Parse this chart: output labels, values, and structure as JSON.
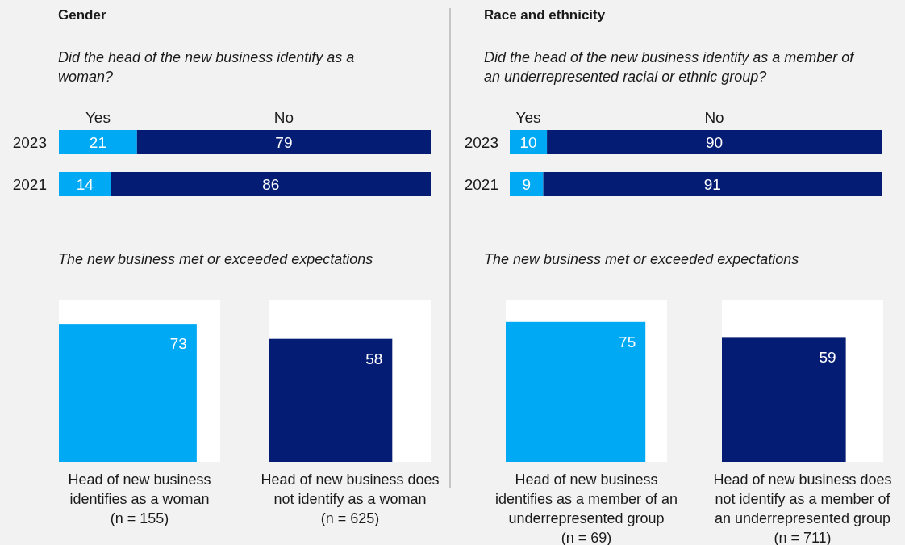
{
  "chart_data": [
    {
      "type": "bar",
      "orientation": "horizontal",
      "stacked": true,
      "title": "Gender",
      "subtitle": "Did the head of the new  business identify as a woman?",
      "categories": [
        "2023",
        "2021"
      ],
      "xlim": [
        0,
        100
      ],
      "tick_labels": "y",
      "data_labels": true,
      "series": [
        {
          "name": "Yes",
          "color": "#00a9f4",
          "values": [
            21,
            14
          ]
        },
        {
          "name": "No",
          "color": "#051c75",
          "values": [
            79,
            86
          ]
        }
      ]
    },
    {
      "type": "other",
      "title": "The new business met or exceeded expectations",
      "categories": [
        "Head of new business\nidentifies as a woman\n(n = 155)",
        "Head of new business does\nnot identify as a woman\n(n = 625)"
      ],
      "values": [
        73,
        58
      ],
      "colors": [
        "#00a9f4",
        "#051c75"
      ],
      "data_labels": true
    },
    {
      "type": "bar",
      "orientation": "horizontal",
      "stacked": true,
      "title": "Race and ethnicity",
      "subtitle": "Did the head of the new business identify as a member of an underrepresented racial or ethnic group?",
      "categories": [
        "2023",
        "2021"
      ],
      "xlim": [
        0,
        100
      ],
      "tick_labels": "y",
      "data_labels": true,
      "series": [
        {
          "name": "Yes",
          "color": "#00a9f4",
          "values": [
            10,
            9
          ]
        },
        {
          "name": "No",
          "color": "#051c75",
          "values": [
            90,
            91
          ]
        }
      ]
    },
    {
      "type": "other",
      "title": "The new business met or exceeded expectations",
      "categories": [
        "Head of new business\nidentifies as a member of an\nunderrepresented group\n(n = 69)",
        "Head of new business does\nnot identify as a member of\nan underrepresented group\n(n = 711)"
      ],
      "values": [
        75,
        59
      ],
      "colors": [
        "#00a9f4",
        "#051c75"
      ],
      "data_labels": true
    }
  ]
}
